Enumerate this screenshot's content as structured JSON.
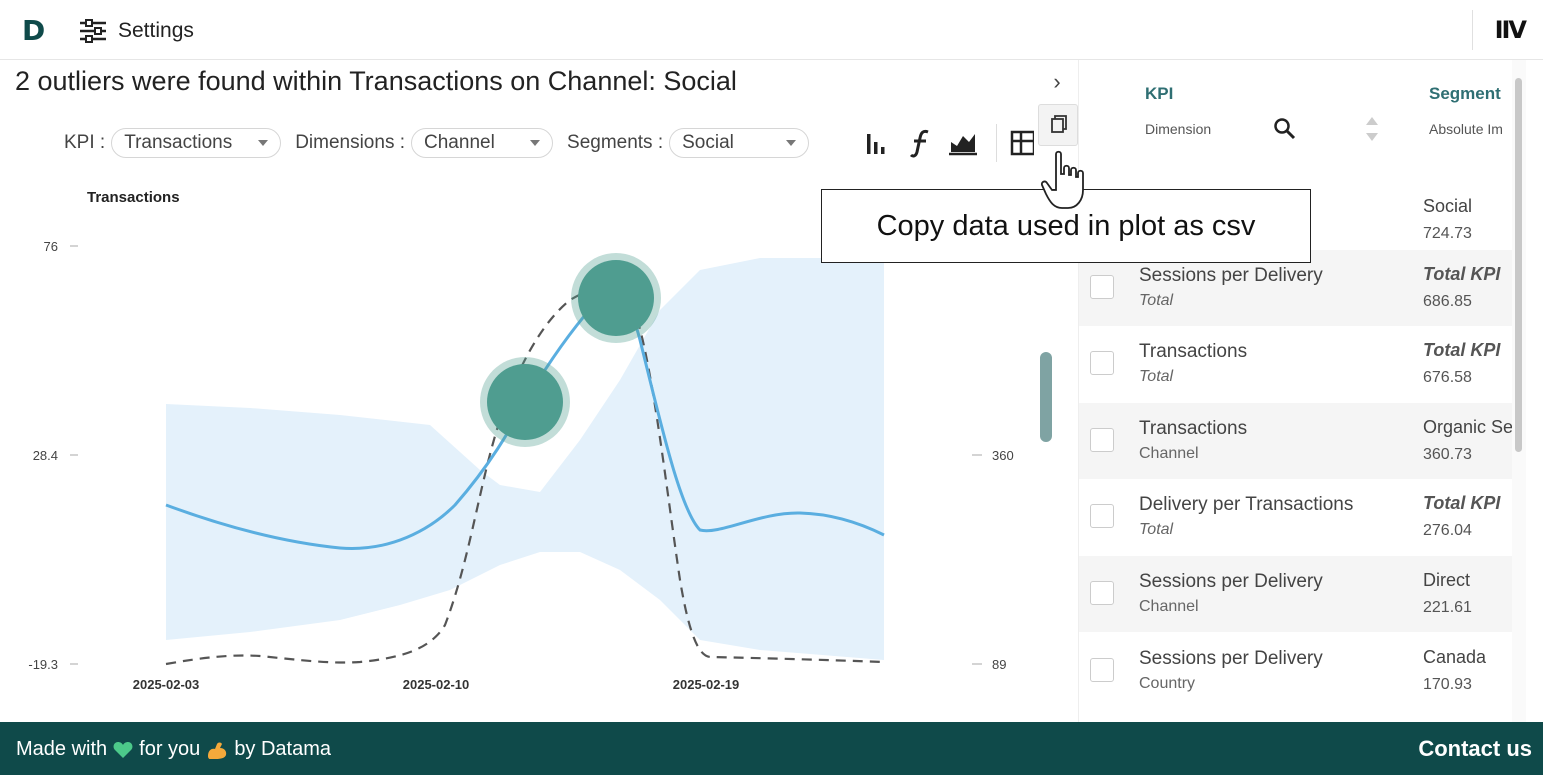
{
  "topbar": {
    "logo_text": "D",
    "settings_label": "Settings",
    "brand_text": "IIV"
  },
  "main": {
    "title": "2 outliers were found within Transactions on Channel: Social",
    "controls": {
      "kpi_label": "KPI :",
      "kpi_value": "Transactions",
      "dimensions_label": "Dimensions :",
      "dimensions_value": "Channel",
      "segments_label": "Segments :",
      "segments_value": "Social"
    },
    "toolbar_icons": [
      "bar-chart-icon",
      "function-icon",
      "area-chart-icon",
      "table-icon"
    ]
  },
  "chart_data": {
    "type": "line",
    "ylabel": "Transactions",
    "y_ticks": [
      "76",
      "28.4",
      "-19.3"
    ],
    "y2_ticks": [
      "360",
      "89"
    ],
    "x_ticks": [
      "2025-02-03",
      "2025-02-10",
      "2025-02-19"
    ],
    "ylim": [
      -19.3,
      76
    ],
    "series": [],
    "band": true,
    "outliers_count": 2,
    "colors": {
      "line": "#5aaee0",
      "band": "#e4f1fb",
      "outlier": "#4f9d90",
      "dashed": "#555555"
    }
  },
  "tooltip": {
    "text": "Copy data used in plot as csv"
  },
  "panel": {
    "toggle_glyph": "›",
    "headers": {
      "kpi": "KPI",
      "dimension": "Dimension",
      "segment": "Segment",
      "absolute": "Absolute Im"
    },
    "rows": [
      {
        "kpi": "",
        "dimension": "",
        "segment": "Social",
        "absolute": "724.73",
        "seg_italic": false,
        "dim_italic": false
      },
      {
        "kpi": "Sessions per Delivery",
        "dimension": "Total",
        "segment": "Total KPI",
        "absolute": "686.85",
        "seg_italic": true,
        "dim_italic": true
      },
      {
        "kpi": "Transactions",
        "dimension": "Total",
        "segment": "Total KPI",
        "absolute": "676.58",
        "seg_italic": true,
        "dim_italic": true
      },
      {
        "kpi": "Transactions",
        "dimension": "Channel",
        "segment": "Organic Se",
        "absolute": "360.73",
        "seg_italic": false,
        "dim_italic": false
      },
      {
        "kpi": "Delivery per Transactions",
        "dimension": "Total",
        "segment": "Total KPI",
        "absolute": "276.04",
        "seg_italic": true,
        "dim_italic": true
      },
      {
        "kpi": "Sessions per Delivery",
        "dimension": "Channel",
        "segment": "Direct",
        "absolute": "221.61",
        "seg_italic": false,
        "dim_italic": false
      },
      {
        "kpi": "Sessions per Delivery",
        "dimension": "Country",
        "segment": "Canada",
        "absolute": "170.93",
        "seg_italic": false,
        "dim_italic": false
      }
    ]
  },
  "footer": {
    "made_with": "Made with",
    "for_you": "for you",
    "by": "by Datama",
    "contact": "Contact us",
    "heart_color": "#4cc98a"
  }
}
